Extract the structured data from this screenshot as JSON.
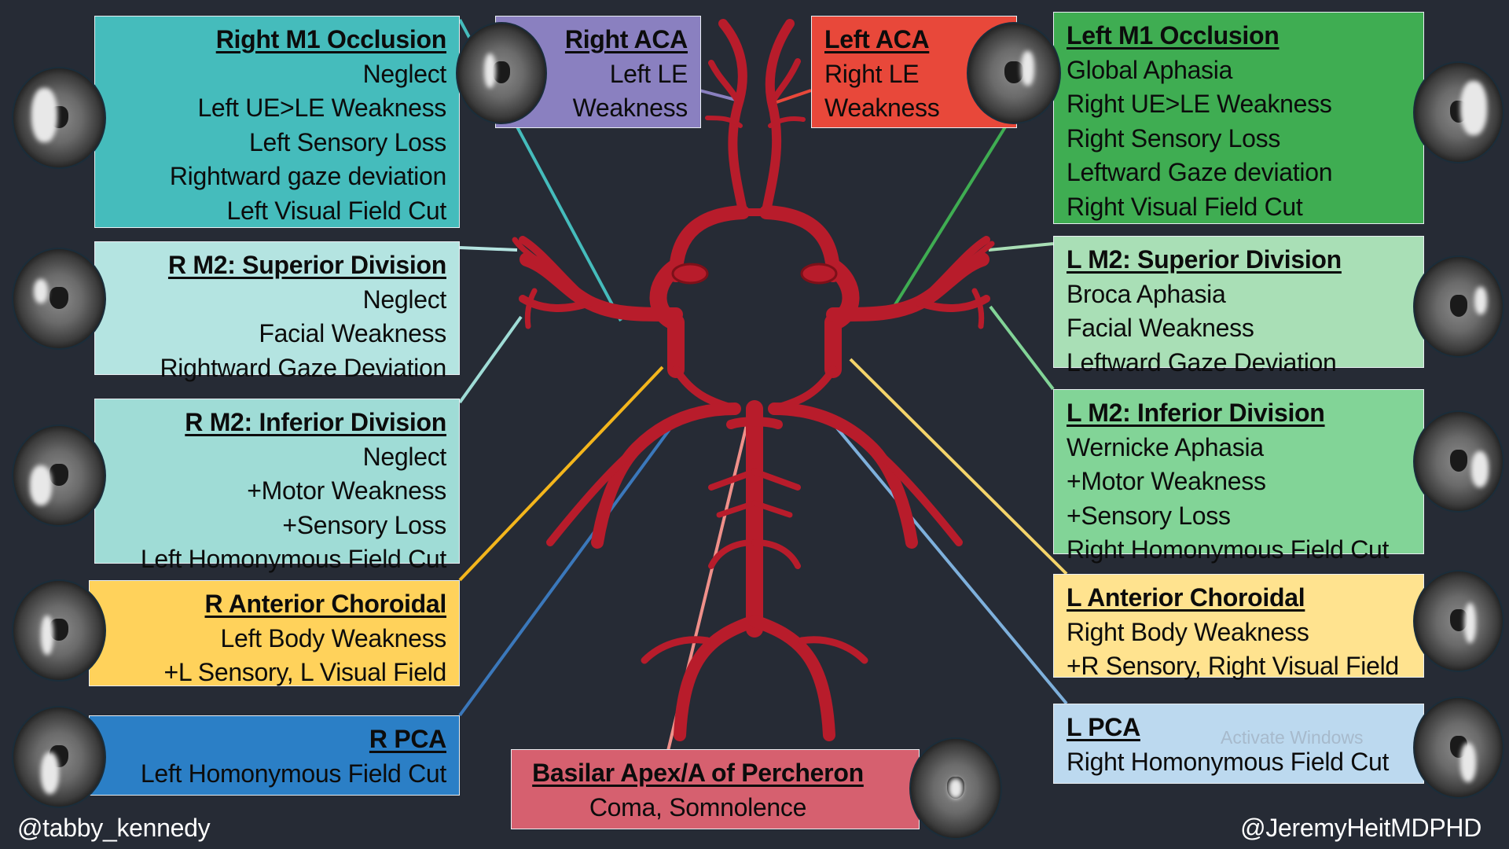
{
  "colors": {
    "background": "#262b35",
    "vessel": "#b81c2b",
    "teal": "#45bcbc",
    "teal_light": "#b4e4e1",
    "teal_mid": "#9fdcd6",
    "purple": "#8a80c0",
    "red": "#e8483a",
    "green": "#3fad52",
    "green_light": "#a9dfb6",
    "green_mid": "#82d497",
    "yellow": "#ffd25b",
    "yellow_light": "#ffe38f",
    "blue": "#2b7fc6",
    "blue_light": "#bcd9ef",
    "pink": "#d6606f"
  },
  "boxes": {
    "right_m1": {
      "title": "Right M1 Occlusion",
      "lines": [
        "Neglect",
        "Left UE>LE Weakness",
        "Left Sensory Loss",
        "Rightward gaze deviation",
        "Left Visual Field Cut"
      ]
    },
    "right_aca": {
      "title": "Right ACA",
      "lines": [
        "Left LE",
        "Weakness"
      ]
    },
    "left_aca": {
      "title": "Left ACA",
      "lines": [
        "Right LE",
        "Weakness"
      ]
    },
    "left_m1": {
      "title": "Left M1 Occlusion",
      "lines": [
        "Global Aphasia",
        "Right UE>LE Weakness",
        "Right Sensory Loss",
        "Leftward Gaze deviation",
        "Right Visual Field Cut"
      ]
    },
    "r_m2_sup": {
      "title": "R M2: Superior Division",
      "lines": [
        "Neglect",
        "Facial Weakness",
        "Rightward Gaze Deviation"
      ]
    },
    "l_m2_sup": {
      "title": "L M2: Superior Division",
      "lines": [
        "Broca Aphasia",
        "Facial Weakness",
        "Leftward Gaze Deviation"
      ]
    },
    "r_m2_inf": {
      "title": "R M2: Inferior Division",
      "lines": [
        "Neglect",
        "+Motor Weakness",
        "+Sensory Loss",
        "Left Homonymous Field Cut"
      ]
    },
    "l_m2_inf": {
      "title": "L M2: Inferior Division",
      "lines": [
        "Wernicke Aphasia",
        "+Motor Weakness",
        "+Sensory Loss",
        "Right Homonymous Field Cut"
      ]
    },
    "r_ant_chor": {
      "title": "R Anterior Choroidal",
      "lines": [
        "Left Body Weakness",
        "+L Sensory, L Visual Field"
      ]
    },
    "l_ant_chor": {
      "title": "L Anterior Choroidal",
      "lines": [
        "Right Body Weakness",
        "+R Sensory, Right Visual Field"
      ]
    },
    "r_pca": {
      "title": "R PCA",
      "lines": [
        "Left Homonymous Field Cut"
      ]
    },
    "l_pca": {
      "title": "L PCA",
      "lines": [
        "Right Homonymous Field Cut"
      ]
    },
    "basilar": {
      "title": "Basilar Apex/A of Percheron",
      "lines": [
        "Coma, Somnolence"
      ]
    }
  },
  "credits": {
    "left": "@tabby_kennedy",
    "right": "@JeremyHeitMDPHD"
  },
  "watermark": "Activate Windows"
}
